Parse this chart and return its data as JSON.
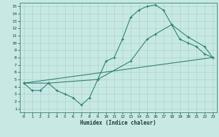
{
  "xlabel": "Humidex (Indice chaleur)",
  "xlim": [
    -0.5,
    23.5
  ],
  "ylim": [
    0.5,
    15.5
  ],
  "xticks": [
    0,
    1,
    2,
    3,
    4,
    5,
    6,
    7,
    8,
    9,
    10,
    11,
    12,
    13,
    14,
    15,
    16,
    17,
    18,
    19,
    20,
    21,
    22,
    23
  ],
  "yticks": [
    1,
    2,
    3,
    4,
    5,
    6,
    7,
    8,
    9,
    10,
    11,
    12,
    13,
    14,
    15
  ],
  "line_color": "#2a7f6f",
  "bg_color": "#c8e8e4",
  "grid_color": "#a8d4cf",
  "line1_x": [
    0,
    1,
    2,
    3,
    4,
    5,
    6,
    7,
    8,
    9,
    10,
    11,
    12,
    13,
    14,
    15,
    16,
    17,
    18,
    19,
    20,
    21,
    22,
    23
  ],
  "line1_y": [
    4.5,
    3.5,
    3.5,
    4.5,
    3.5,
    3.0,
    2.5,
    1.5,
    2.5,
    5.0,
    7.5,
    8.0,
    10.5,
    13.5,
    14.5,
    15.0,
    15.2,
    14.5,
    12.5,
    10.5,
    10.0,
    9.5,
    8.5,
    8.0
  ],
  "line2_x": [
    0,
    3,
    9,
    13,
    15,
    16,
    18,
    20,
    22,
    23
  ],
  "line2_y": [
    4.5,
    4.5,
    5.0,
    7.5,
    10.5,
    11.2,
    12.5,
    10.8,
    9.5,
    8.0
  ],
  "line3_x": [
    0,
    23
  ],
  "line3_y": [
    4.5,
    8.0
  ]
}
